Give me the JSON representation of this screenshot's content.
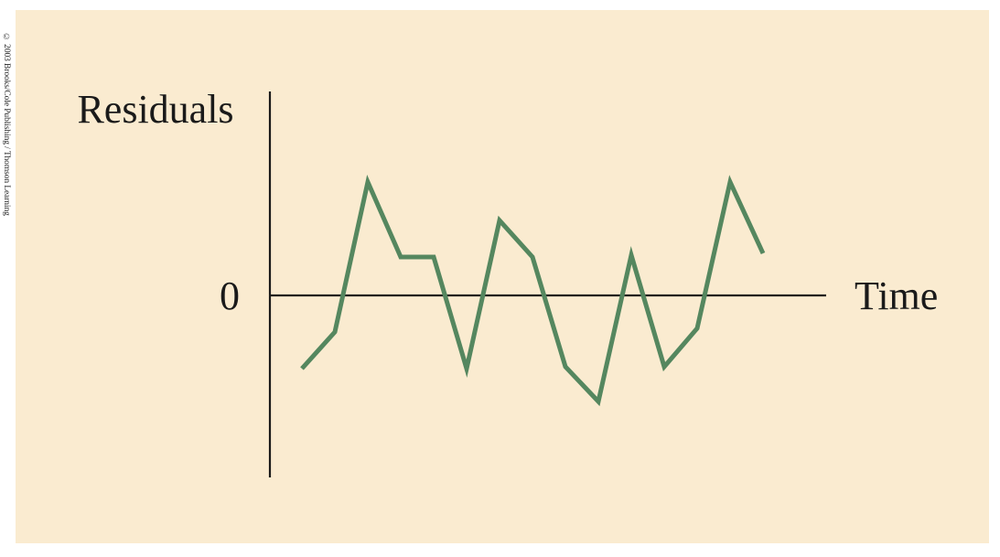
{
  "copyright": "© 2003 Brooks/Cole Publishing / Thomson Learning",
  "chart_data": {
    "type": "line",
    "title": "",
    "xlabel": "Time",
    "ylabel": "Residuals",
    "yticks": [
      "0"
    ],
    "x": [
      1,
      2,
      3,
      4,
      5,
      6,
      7,
      8,
      9,
      10,
      11,
      12,
      13,
      14,
      15
    ],
    "series": [
      {
        "values": [
          -2.0,
          -1.0,
          3.1,
          1.05,
          1.05,
          -2.0,
          2.05,
          1.05,
          -1.95,
          -2.9,
          1.1,
          -1.95,
          -0.9,
          3.1,
          1.15
        ]
      }
    ],
    "ylim": [
      -5,
      5.6
    ],
    "grid": false,
    "legend": "none",
    "line_color": "#55875f",
    "background_color": "#faebd0"
  }
}
